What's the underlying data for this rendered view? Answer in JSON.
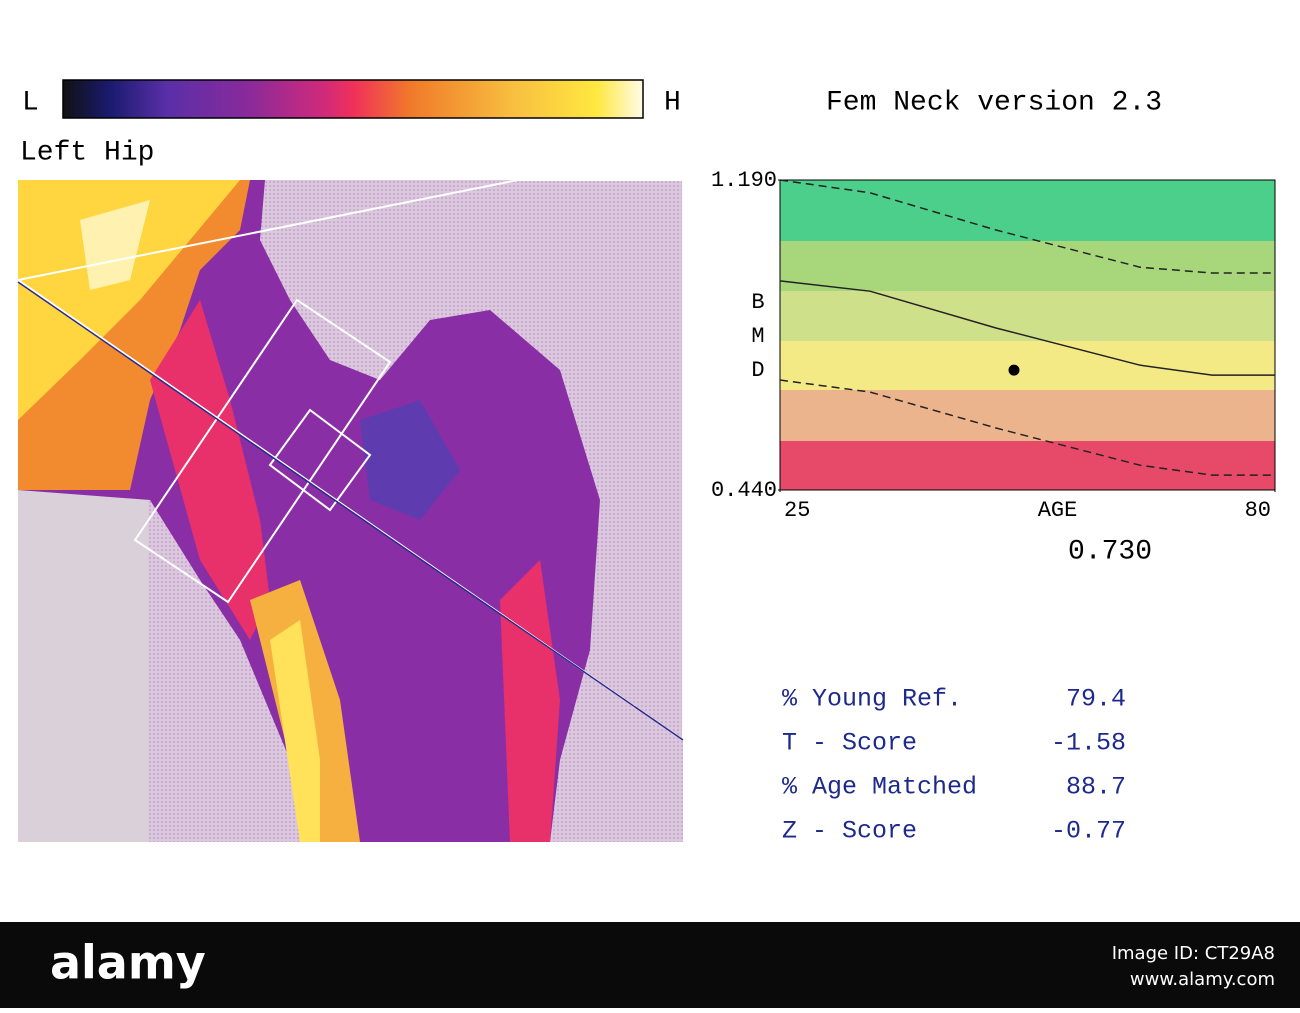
{
  "header": {
    "low": "L",
    "high": "H",
    "title": "Fem Neck version 2.3",
    "region": "Left Hip"
  },
  "chart_data": {
    "type": "line",
    "x": [
      25,
      35,
      49,
      65,
      73,
      80
    ],
    "series": [
      {
        "color": "#222222",
        "dash": true,
        "values": [
          1.19,
          1.159,
          1.069,
          0.979,
          0.965,
          0.965
        ]
      },
      {
        "color": "#222222",
        "dash": false,
        "values": [
          0.946,
          0.921,
          0.832,
          0.742,
          0.718,
          0.718
        ]
      },
      {
        "color": "#222222",
        "dash": true,
        "values": [
          0.706,
          0.677,
          0.59,
          0.5,
          0.476,
          0.476
        ]
      }
    ],
    "point": {
      "x": 51,
      "y": 0.73,
      "value_label": "0.730",
      "color": "#000000"
    },
    "xlabel": "AGE",
    "ylabel": "BMD",
    "xlim": [
      25,
      80
    ],
    "ylim": [
      0.44,
      1.19
    ],
    "xticks": [
      25,
      80
    ],
    "yticks": [
      {
        "value": 0.44,
        "label": "0.440"
      },
      {
        "value": 1.19,
        "label": "1.190"
      }
    ]
  },
  "results": {
    "rows": [
      [
        "% Young Ref.",
        "79.4"
      ],
      [
        "T - Score",
        "-1.58"
      ],
      [
        "% Age Matched",
        "88.7"
      ],
      [
        "Z - Score",
        "-0.77"
      ]
    ]
  },
  "footer": {
    "brand": "alamy",
    "image_id": "Image ID: CT29A8",
    "site": "www.alamy.com"
  }
}
